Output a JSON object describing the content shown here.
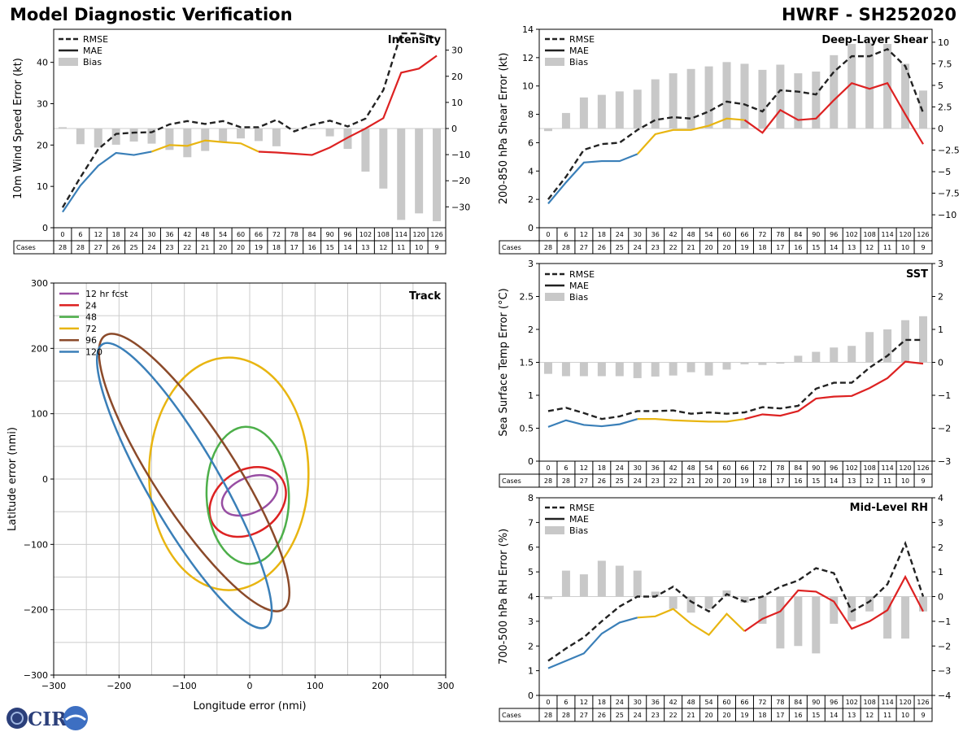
{
  "header": {
    "title": "Model Diagnostic Verification",
    "storm": "HWRF - SH252020"
  },
  "logo": {
    "text": "CIRA"
  },
  "colors": {
    "rmse": "#222222",
    "blue": "#3a7fb8",
    "yellow": "#e8b511",
    "red": "#dd2222",
    "bias": "#c8c8c8"
  },
  "chart_data": [
    {
      "id": "intensity",
      "type": "line",
      "title": "Intensity",
      "ylabel": "10m Wind Speed Error (kt)",
      "ylim": [
        0,
        48
      ],
      "yticks": [
        0,
        10,
        20,
        30,
        40
      ],
      "y2lim": [
        -38,
        38
      ],
      "y2ticks": [
        -30,
        -20,
        -10,
        0,
        10,
        20,
        30
      ],
      "legend": [
        "RMSE",
        "MAE",
        "Bias"
      ],
      "x": [
        0,
        6,
        12,
        18,
        24,
        30,
        36,
        42,
        48,
        54,
        60,
        66,
        72,
        78,
        84,
        90,
        96,
        102,
        108,
        114,
        120,
        126
      ],
      "cases_label": "Cases",
      "cases": [
        28,
        28,
        27,
        26,
        25,
        24,
        23,
        22,
        21,
        20,
        20,
        19,
        18,
        17,
        16,
        15,
        14,
        13,
        12,
        11,
        10,
        9
      ],
      "series": [
        {
          "name": "RMSE",
          "values": [
            4.9,
            12.2,
            19.0,
            22.7,
            23.0,
            23.1,
            25.0,
            25.8,
            25.1,
            25.8,
            24.3,
            24.3,
            26.1,
            23.3,
            24.9,
            25.9,
            24.5,
            26.4,
            33.3,
            47.0,
            47.0,
            45.8
          ]
        },
        {
          "name": "MAE",
          "values": [
            3.8,
            10.2,
            15.0,
            18.1,
            17.6,
            18.4,
            20.0,
            19.8,
            21.1,
            20.7,
            20.4,
            18.4,
            18.2,
            17.9,
            17.6,
            19.4,
            21.8,
            24.0,
            26.5,
            37.5,
            38.5,
            41.6
          ]
        },
        {
          "name": "Bias",
          "values": [
            0.5,
            -6.0,
            -7.3,
            -6.2,
            -5.0,
            -5.8,
            -8.2,
            -11.0,
            -8.6,
            -5.0,
            -3.8,
            -4.8,
            -6.8,
            0,
            0,
            -3.0,
            -7.8,
            -16.5,
            -23.0,
            -35.0,
            -32.5,
            -35.5
          ]
        }
      ]
    },
    {
      "id": "shear",
      "type": "line",
      "title": "Deep-Layer Shear",
      "ylabel": "200-850 hPa Shear Error (kt)",
      "ylim": [
        0,
        14
      ],
      "yticks": [
        0,
        2,
        4,
        6,
        8,
        10,
        12,
        14
      ],
      "y2lim": [
        -11.5,
        11.5
      ],
      "y2ticks": [
        -10.0,
        -7.5,
        -5.0,
        -2.5,
        0.0,
        2.5,
        5.0,
        7.5,
        10.0
      ],
      "legend": [
        "RMSE",
        "MAE",
        "Bias"
      ],
      "x": [
        0,
        6,
        12,
        18,
        24,
        30,
        36,
        42,
        48,
        54,
        60,
        66,
        72,
        78,
        84,
        90,
        96,
        102,
        108,
        114,
        120,
        126
      ],
      "cases_label": "Cases",
      "cases": [
        28,
        28,
        27,
        26,
        25,
        24,
        23,
        22,
        21,
        20,
        20,
        19,
        18,
        17,
        16,
        15,
        14,
        13,
        12,
        11,
        10,
        9
      ],
      "series": [
        {
          "name": "RMSE",
          "values": [
            2.0,
            3.6,
            5.5,
            5.9,
            6.0,
            6.9,
            7.6,
            7.8,
            7.7,
            8.2,
            8.9,
            8.7,
            8.2,
            9.7,
            9.6,
            9.4,
            11.0,
            12.1,
            12.1,
            12.6,
            11.4,
            8.1
          ]
        },
        {
          "name": "MAE",
          "values": [
            1.7,
            3.2,
            4.6,
            4.7,
            4.7,
            5.2,
            6.6,
            6.9,
            6.9,
            7.2,
            7.7,
            7.6,
            6.7,
            8.3,
            7.6,
            7.7,
            9.0,
            10.2,
            9.8,
            10.2,
            8.0,
            5.9
          ]
        },
        {
          "name": "Bias",
          "values": [
            -0.3,
            1.8,
            3.6,
            3.9,
            4.3,
            4.5,
            5.7,
            6.4,
            6.9,
            7.2,
            7.7,
            7.5,
            6.8,
            7.4,
            6.4,
            6.6,
            8.5,
            9.8,
            9.9,
            9.8,
            7.5,
            4.4
          ]
        }
      ]
    },
    {
      "id": "sst",
      "type": "line",
      "title": "SST",
      "ylabel": "Sea Surface Temp Error (°C)",
      "ylim": [
        0,
        3
      ],
      "yticks": [
        0.0,
        0.5,
        1.0,
        1.5,
        2.0,
        2.5,
        3.0
      ],
      "y2lim": [
        -3,
        3
      ],
      "y2ticks": [
        -3,
        -2,
        -1,
        0,
        1,
        2,
        3
      ],
      "legend": [
        "RMSE",
        "MAE",
        "Bias"
      ],
      "x": [
        0,
        6,
        12,
        18,
        24,
        30,
        36,
        42,
        48,
        54,
        60,
        66,
        72,
        78,
        84,
        90,
        96,
        102,
        108,
        114,
        120,
        126
      ],
      "cases_label": "Cases",
      "cases": [
        28,
        28,
        27,
        26,
        25,
        24,
        23,
        22,
        21,
        20,
        20,
        19,
        18,
        17,
        16,
        15,
        14,
        13,
        12,
        11,
        10,
        9
      ],
      "series": [
        {
          "name": "RMSE",
          "values": [
            0.76,
            0.81,
            0.73,
            0.64,
            0.68,
            0.76,
            0.76,
            0.77,
            0.72,
            0.74,
            0.72,
            0.74,
            0.82,
            0.8,
            0.84,
            1.1,
            1.19,
            1.19,
            1.42,
            1.6,
            1.84,
            1.84
          ]
        },
        {
          "name": "MAE",
          "values": [
            0.52,
            0.62,
            0.55,
            0.53,
            0.56,
            0.64,
            0.64,
            0.62,
            0.61,
            0.6,
            0.6,
            0.64,
            0.71,
            0.69,
            0.76,
            0.95,
            0.98,
            0.99,
            1.11,
            1.26,
            1.51,
            1.48
          ]
        },
        {
          "name": "Bias",
          "values": [
            -0.35,
            -0.42,
            -0.42,
            -0.42,
            -0.42,
            -0.48,
            -0.43,
            -0.4,
            -0.3,
            -0.4,
            -0.22,
            -0.06,
            -0.08,
            -0.04,
            0.2,
            0.32,
            0.45,
            0.5,
            0.92,
            1.0,
            1.28,
            1.4
          ]
        }
      ]
    },
    {
      "id": "rh",
      "type": "line",
      "title": "Mid-Level RH",
      "ylabel": "700-500 hPa RH Error (%)",
      "ylim": [
        0,
        8
      ],
      "yticks": [
        0,
        1,
        2,
        3,
        4,
        5,
        6,
        7,
        8
      ],
      "y2lim": [
        -4,
        4
      ],
      "y2ticks": [
        -4,
        -3,
        -2,
        -1,
        0,
        1,
        2,
        3,
        4
      ],
      "legend": [
        "RMSE",
        "MAE",
        "Bias"
      ],
      "x": [
        0,
        6,
        12,
        18,
        24,
        30,
        36,
        42,
        48,
        54,
        60,
        66,
        72,
        78,
        84,
        90,
        96,
        102,
        108,
        114,
        120,
        126
      ],
      "cases_label": "Cases",
      "cases": [
        28,
        28,
        27,
        26,
        25,
        24,
        23,
        22,
        21,
        20,
        20,
        19,
        18,
        17,
        16,
        15,
        14,
        13,
        12,
        11,
        10,
        9
      ],
      "series": [
        {
          "name": "RMSE",
          "values": [
            1.4,
            1.9,
            2.35,
            3.0,
            3.6,
            4.0,
            4.0,
            4.4,
            3.8,
            3.4,
            4.1,
            3.8,
            4.0,
            4.4,
            4.65,
            5.15,
            4.95,
            3.4,
            3.8,
            4.5,
            6.15,
            4.0
          ]
        },
        {
          "name": "MAE",
          "values": [
            1.1,
            1.4,
            1.7,
            2.5,
            2.95,
            3.15,
            3.2,
            3.5,
            2.9,
            2.45,
            3.3,
            2.6,
            3.1,
            3.4,
            4.25,
            4.2,
            3.8,
            2.7,
            3.0,
            3.45,
            4.8,
            3.4
          ]
        },
        {
          "name": "Bias",
          "values": [
            -0.1,
            1.05,
            0.9,
            1.45,
            1.25,
            1.05,
            0.2,
            -0.5,
            -0.65,
            -0.5,
            0.25,
            -0.25,
            -1.1,
            -2.1,
            -2.0,
            -2.3,
            -1.1,
            -1.0,
            -0.6,
            -1.7,
            -1.7,
            -0.6
          ]
        }
      ]
    },
    {
      "id": "track",
      "type": "ellipse",
      "title": "Track",
      "xlabel": "Longitude error (nmi)",
      "ylabel": "Latitude error (nmi)",
      "xlim": [
        -300,
        300
      ],
      "ylim": [
        -300,
        300
      ],
      "xticks": [
        -300,
        -200,
        -100,
        0,
        100,
        200,
        300
      ],
      "yticks": [
        -300,
        -200,
        -100,
        0,
        100,
        200,
        300
      ],
      "legend": [
        "12 hr fcst",
        "24",
        "48",
        "72",
        "96",
        "120"
      ],
      "ellipses": [
        {
          "name": "12 hr fcst",
          "color": "#984ea3",
          "cx": 0,
          "cy": -25,
          "rx": 45,
          "ry": 27,
          "angle": -25
        },
        {
          "name": "24",
          "color": "#dd2222",
          "cx": -3,
          "cy": -35,
          "rx": 63,
          "ry": 48,
          "angle": -35
        },
        {
          "name": "48",
          "color": "#4daf4a",
          "cx": -3,
          "cy": -25,
          "rx": 63,
          "ry": 105,
          "angle": -2
        },
        {
          "name": "72",
          "color": "#e8b511",
          "cx": -32,
          "cy": 8,
          "rx": 122,
          "ry": 178,
          "angle": 0
        },
        {
          "name": "96",
          "color": "#8b4a2a",
          "cx": -85,
          "cy": 10,
          "rx": 62,
          "ry": 250,
          "angle": -33
        },
        {
          "name": "120",
          "color": "#3a7fb8",
          "cx": -100,
          "cy": -10,
          "rx": 55,
          "ry": 250,
          "angle": -30
        }
      ]
    }
  ]
}
